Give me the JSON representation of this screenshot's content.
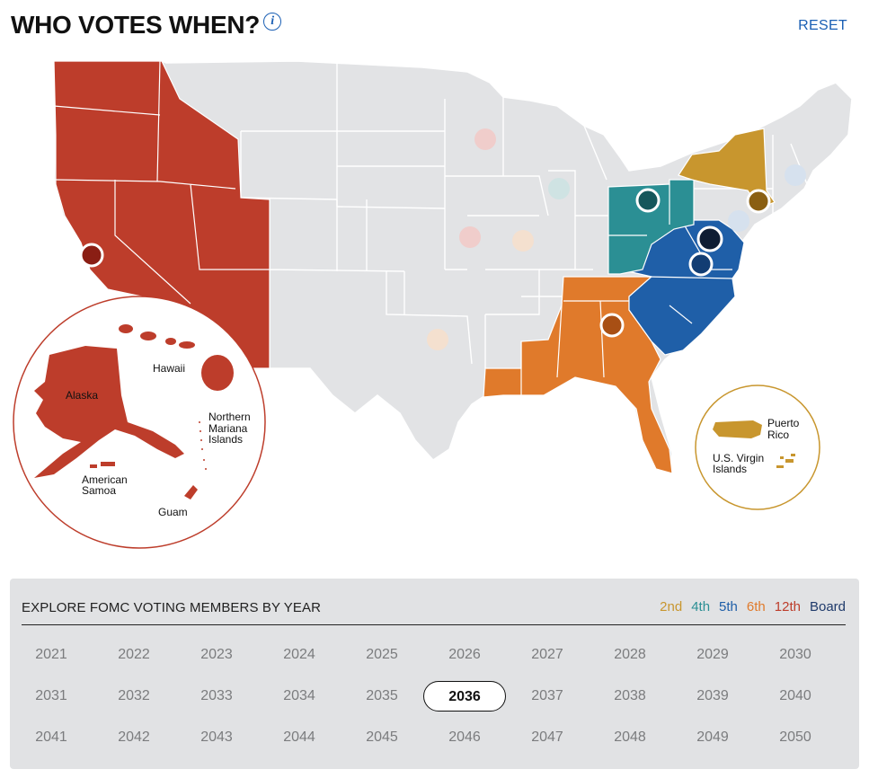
{
  "header": {
    "title": "WHO VOTES WHEN?",
    "info_icon": "i",
    "reset_label": "RESET"
  },
  "colors": {
    "district_2": "#c8962e",
    "district_4": "#2b8f94",
    "district_5": "#1f5fa8",
    "district_6": "#e07a2b",
    "district_12": "#bd3d2b",
    "board": "#1f3a6b",
    "inactive": "#e2e3e5"
  },
  "map": {
    "inset_pacific": {
      "labels": [
        "Alaska",
        "Hawaii",
        "Northern",
        "Mariana",
        "Islands",
        "American",
        "Samoa",
        "Guam"
      ]
    },
    "inset_caribbean": {
      "labels": [
        "Puerto",
        "Rico",
        "U.S. Virgin",
        "Islands"
      ]
    }
  },
  "panel": {
    "title": "EXPLORE FOMC VOTING MEMBERS BY YEAR",
    "legend": [
      {
        "label": "2nd",
        "color": "#c8962e"
      },
      {
        "label": "4th",
        "color": "#2b8f94"
      },
      {
        "label": "5th",
        "color": "#1f5fa8"
      },
      {
        "label": "6th",
        "color": "#e07a2b"
      },
      {
        "label": "12th",
        "color": "#bd3d2b"
      },
      {
        "label": "Board",
        "color": "#1f3a6b"
      }
    ],
    "years": [
      [
        "2021",
        "2022",
        "2023",
        "2024",
        "2025",
        "2026",
        "2027",
        "2028",
        "2029",
        "2030"
      ],
      [
        "2031",
        "2032",
        "2033",
        "2034",
        "2035",
        "2036",
        "2037",
        "2038",
        "2039",
        "2040"
      ],
      [
        "2041",
        "2042",
        "2043",
        "2044",
        "2045",
        "2046",
        "2047",
        "2048",
        "2049",
        "2050"
      ]
    ],
    "selected_year": "2036"
  }
}
